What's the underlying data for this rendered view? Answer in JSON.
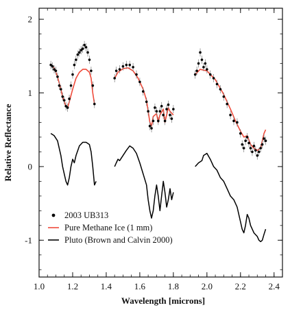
{
  "chart_data": {
    "type": "scatter",
    "title": "",
    "xlabel": "Wavelength [microns]",
    "ylabel": "Relative Reflectance",
    "xlim": [
      1.0,
      2.45
    ],
    "ylim": [
      -1.5,
      2.15
    ],
    "xticks": [
      1.0,
      1.2,
      1.4,
      1.6,
      1.8,
      2.0,
      2.2,
      2.4
    ],
    "xtick_labels": [
      "1.0",
      "1.2",
      "1.4",
      "1.6",
      "1.8",
      "2.0",
      "2.2",
      "2.4"
    ],
    "yticks": [
      -1,
      0,
      1,
      2
    ],
    "ytick_labels": [
      "-1",
      "0",
      "1",
      "2"
    ],
    "legend_position": "bottom-left",
    "series": [
      {
        "name": "2003 UB313",
        "kind": "points-with-errorbars",
        "color": "#000000",
        "segments": [
          [
            [
              1.07,
              1.38
            ],
            [
              1.08,
              1.36
            ],
            [
              1.09,
              1.32
            ],
            [
              1.1,
              1.3
            ],
            [
              1.11,
              1.22
            ],
            [
              1.12,
              1.1
            ],
            [
              1.13,
              1.05
            ],
            [
              1.14,
              0.95
            ],
            [
              1.15,
              0.9
            ],
            [
              1.16,
              0.82
            ],
            [
              1.17,
              0.8
            ],
            [
              1.18,
              0.92
            ],
            [
              1.19,
              1.1
            ],
            [
              1.2,
              1.25
            ],
            [
              1.21,
              1.38
            ],
            [
              1.22,
              1.45
            ],
            [
              1.23,
              1.52
            ],
            [
              1.24,
              1.55
            ],
            [
              1.25,
              1.58
            ],
            [
              1.26,
              1.6
            ],
            [
              1.27,
              1.65
            ],
            [
              1.28,
              1.62
            ],
            [
              1.29,
              1.55
            ],
            [
              1.3,
              1.45
            ],
            [
              1.31,
              1.3
            ],
            [
              1.32,
              1.1
            ],
            [
              1.33,
              0.85
            ]
          ],
          [
            [
              1.45,
              1.2
            ],
            [
              1.46,
              1.3
            ],
            [
              1.48,
              1.32
            ],
            [
              1.5,
              1.36
            ],
            [
              1.52,
              1.38
            ],
            [
              1.54,
              1.38
            ],
            [
              1.56,
              1.35
            ],
            [
              1.58,
              1.25
            ],
            [
              1.6,
              1.15
            ],
            [
              1.62,
              1.02
            ],
            [
              1.64,
              0.88
            ],
            [
              1.65,
              0.75
            ],
            [
              1.66,
              0.55
            ],
            [
              1.67,
              0.52
            ],
            [
              1.68,
              0.62
            ],
            [
              1.69,
              0.8
            ],
            [
              1.7,
              0.75
            ],
            [
              1.71,
              0.62
            ],
            [
              1.72,
              0.75
            ],
            [
              1.73,
              0.82
            ],
            [
              1.74,
              0.7
            ],
            [
              1.75,
              0.62
            ],
            [
              1.76,
              0.78
            ],
            [
              1.77,
              0.84
            ],
            [
              1.78,
              0.7
            ],
            [
              1.79,
              0.65
            ],
            [
              1.8,
              0.78
            ]
          ],
          [
            [
              1.93,
              1.25
            ],
            [
              1.94,
              1.3
            ],
            [
              1.95,
              1.4
            ],
            [
              1.96,
              1.55
            ],
            [
              1.97,
              1.45
            ],
            [
              1.98,
              1.35
            ],
            [
              1.99,
              1.4
            ],
            [
              2.0,
              1.32
            ],
            [
              2.02,
              1.25
            ],
            [
              2.04,
              1.2
            ],
            [
              2.06,
              1.12
            ],
            [
              2.08,
              1.05
            ],
            [
              2.1,
              0.95
            ],
            [
              2.12,
              0.85
            ],
            [
              2.14,
              0.7
            ],
            [
              2.16,
              0.62
            ],
            [
              2.18,
              0.6
            ],
            [
              2.2,
              0.45
            ],
            [
              2.21,
              0.3
            ],
            [
              2.22,
              0.25
            ],
            [
              2.23,
              0.35
            ],
            [
              2.24,
              0.4
            ],
            [
              2.25,
              0.32
            ],
            [
              2.26,
              0.25
            ],
            [
              2.27,
              0.2
            ],
            [
              2.28,
              0.28
            ],
            [
              2.29,
              0.22
            ],
            [
              2.3,
              0.15
            ],
            [
              2.31,
              0.2
            ],
            [
              2.32,
              0.25
            ],
            [
              2.33,
              0.3
            ],
            [
              2.34,
              0.38
            ],
            [
              2.35,
              0.35
            ]
          ]
        ]
      },
      {
        "name": "Pure Methane Ice (1 mm)",
        "kind": "line",
        "color": "#ef4a3a",
        "segments": [
          [
            [
              1.07,
              1.38
            ],
            [
              1.09,
              1.34
            ],
            [
              1.11,
              1.22
            ],
            [
              1.13,
              1.05
            ],
            [
              1.14,
              0.95
            ],
            [
              1.15,
              0.88
            ],
            [
              1.16,
              0.82
            ],
            [
              1.17,
              0.8
            ],
            [
              1.18,
              0.88
            ],
            [
              1.2,
              1.05
            ],
            [
              1.22,
              1.2
            ],
            [
              1.24,
              1.28
            ],
            [
              1.26,
              1.32
            ],
            [
              1.28,
              1.32
            ],
            [
              1.3,
              1.28
            ],
            [
              1.31,
              1.2
            ],
            [
              1.32,
              1.0
            ],
            [
              1.33,
              0.85
            ]
          ],
          [
            [
              1.45,
              1.2
            ],
            [
              1.47,
              1.28
            ],
            [
              1.5,
              1.33
            ],
            [
              1.53,
              1.34
            ],
            [
              1.56,
              1.3
            ],
            [
              1.59,
              1.2
            ],
            [
              1.62,
              1.05
            ],
            [
              1.64,
              0.9
            ],
            [
              1.66,
              0.6
            ],
            [
              1.67,
              0.55
            ],
            [
              1.68,
              0.68
            ],
            [
              1.7,
              0.72
            ],
            [
              1.71,
              0.6
            ],
            [
              1.72,
              0.7
            ],
            [
              1.74,
              0.78
            ],
            [
              1.75,
              0.6
            ],
            [
              1.77,
              0.8
            ],
            [
              1.78,
              0.75
            ],
            [
              1.8,
              0.7
            ]
          ],
          [
            [
              1.93,
              1.25
            ],
            [
              1.96,
              1.32
            ],
            [
              2.0,
              1.3
            ],
            [
              2.05,
              1.18
            ],
            [
              2.1,
              0.98
            ],
            [
              2.14,
              0.78
            ],
            [
              2.17,
              0.62
            ],
            [
              2.2,
              0.48
            ],
            [
              2.22,
              0.4
            ],
            [
              2.24,
              0.42
            ],
            [
              2.26,
              0.3
            ],
            [
              2.28,
              0.25
            ],
            [
              2.3,
              0.22
            ],
            [
              2.32,
              0.25
            ],
            [
              2.33,
              0.35
            ],
            [
              2.34,
              0.45
            ],
            [
              2.35,
              0.5
            ]
          ]
        ]
      },
      {
        "name": "Pluto (Brown and Calvin 2000)",
        "kind": "line",
        "color": "#000000",
        "segments": [
          [
            [
              1.07,
              0.45
            ],
            [
              1.09,
              0.42
            ],
            [
              1.11,
              0.35
            ],
            [
              1.13,
              0.15
            ],
            [
              1.14,
              0.0
            ],
            [
              1.15,
              -0.1
            ],
            [
              1.16,
              -0.2
            ],
            [
              1.17,
              -0.25
            ],
            [
              1.18,
              -0.15
            ],
            [
              1.19,
              0.0
            ],
            [
              1.2,
              0.1
            ],
            [
              1.21,
              0.05
            ],
            [
              1.22,
              0.15
            ],
            [
              1.24,
              0.28
            ],
            [
              1.26,
              0.33
            ],
            [
              1.28,
              0.33
            ],
            [
              1.3,
              0.3
            ],
            [
              1.31,
              0.2
            ],
            [
              1.32,
              0.0
            ],
            [
              1.33,
              -0.25
            ],
            [
              1.34,
              -0.2
            ]
          ],
          [
            [
              1.45,
              0.0
            ],
            [
              1.46,
              0.05
            ],
            [
              1.47,
              0.1
            ],
            [
              1.48,
              0.08
            ],
            [
              1.5,
              0.15
            ],
            [
              1.52,
              0.22
            ],
            [
              1.54,
              0.28
            ],
            [
              1.56,
              0.25
            ],
            [
              1.58,
              0.18
            ],
            [
              1.6,
              0.05
            ],
            [
              1.62,
              -0.1
            ],
            [
              1.64,
              -0.25
            ],
            [
              1.65,
              -0.45
            ],
            [
              1.66,
              -0.6
            ],
            [
              1.67,
              -0.7
            ],
            [
              1.68,
              -0.6
            ],
            [
              1.69,
              -0.4
            ],
            [
              1.7,
              -0.25
            ],
            [
              1.71,
              -0.4
            ],
            [
              1.72,
              -0.6
            ],
            [
              1.73,
              -0.4
            ],
            [
              1.74,
              -0.2
            ],
            [
              1.75,
              -0.35
            ],
            [
              1.76,
              -0.55
            ],
            [
              1.77,
              -0.45
            ],
            [
              1.78,
              -0.3
            ],
            [
              1.79,
              -0.45
            ],
            [
              1.8,
              -0.35
            ]
          ],
          [
            [
              1.93,
              0.0
            ],
            [
              1.95,
              0.05
            ],
            [
              1.97,
              0.08
            ],
            [
              1.98,
              0.15
            ],
            [
              2.0,
              0.18
            ],
            [
              2.02,
              0.1
            ],
            [
              2.04,
              0.0
            ],
            [
              2.06,
              -0.05
            ],
            [
              2.08,
              -0.15
            ],
            [
              2.1,
              -0.2
            ],
            [
              2.12,
              -0.3
            ],
            [
              2.14,
              -0.4
            ],
            [
              2.16,
              -0.45
            ],
            [
              2.18,
              -0.55
            ],
            [
              2.2,
              -0.75
            ],
            [
              2.21,
              -0.85
            ],
            [
              2.22,
              -0.9
            ],
            [
              2.23,
              -0.8
            ],
            [
              2.24,
              -0.65
            ],
            [
              2.25,
              -0.7
            ],
            [
              2.26,
              -0.8
            ],
            [
              2.28,
              -0.9
            ],
            [
              2.3,
              -0.95
            ],
            [
              2.31,
              -1.0
            ],
            [
              2.32,
              -1.02
            ],
            [
              2.33,
              -1.0
            ],
            [
              2.34,
              -0.92
            ],
            [
              2.35,
              -0.85
            ]
          ]
        ]
      }
    ],
    "legend": [
      {
        "label": "2003 UB313",
        "marker": "dot",
        "color": "#000000"
      },
      {
        "label": "Pure Methane Ice (1 mm)",
        "marker": "line",
        "color": "#ef4a3a"
      },
      {
        "label": "Pluto (Brown and Calvin 2000)",
        "marker": "line",
        "color": "#000000"
      }
    ]
  }
}
